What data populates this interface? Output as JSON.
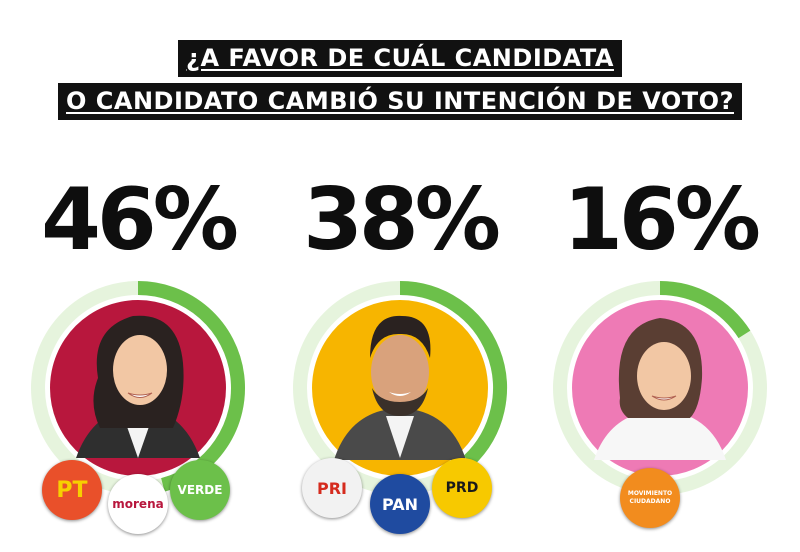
{
  "title": {
    "line1": "¿A FAVOR DE CUÁL CANDIDATA",
    "line2": "O CANDIDATO CAMBIÓ SU INTENCIÓN DE VOTO?"
  },
  "candidates": [
    {
      "percent_label": "46%",
      "value": 46,
      "bg_color": "#b8173d",
      "parties": [
        "PT",
        "morena",
        "VERDE"
      ]
    },
    {
      "percent_label": "38%",
      "value": 38,
      "bg_color": "#f7b500",
      "parties": [
        "PRI",
        "PAN",
        "PRD"
      ]
    },
    {
      "percent_label": "16%",
      "value": 16,
      "bg_color": "#ee7ab5",
      "parties": [
        "MOVIMIENTO CIUDADANO"
      ]
    }
  ],
  "colors": {
    "ring_green": "#6cc04a",
    "ring_light": "#e6f4dd"
  },
  "chart_data": {
    "type": "pie",
    "title": "¿A FAVOR DE CUÁL CANDIDATA O CANDIDATO CAMBIÓ SU INTENCIÓN DE VOTO?",
    "categories": [
      "PT / morena / VERDE",
      "PRI / PAN / PRD",
      "MOVIMIENTO CIUDADANO"
    ],
    "values": [
      46,
      38,
      16
    ],
    "unit": "%"
  }
}
